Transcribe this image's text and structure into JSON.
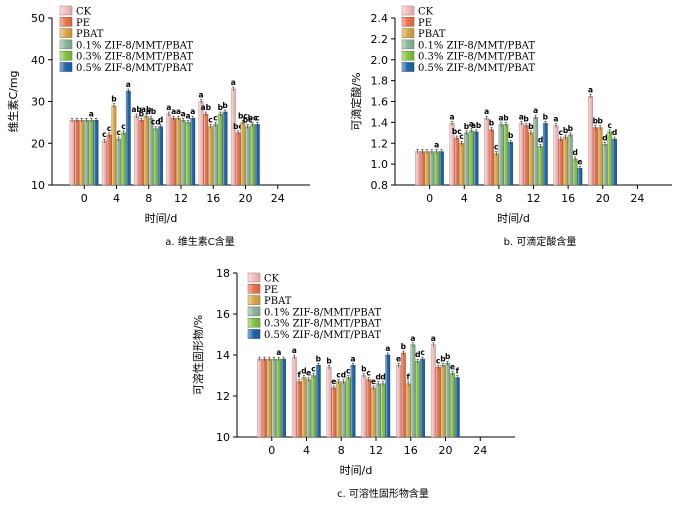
{
  "chart_data": [
    {
      "type": "bar",
      "panel_caption": "a.  维生素C含量",
      "ylabel": "维生素C/mg",
      "xlabel": "时间/d",
      "ylim": [
        10,
        50
      ],
      "yticks": [
        10,
        20,
        30,
        40,
        50
      ],
      "xticks": [
        "0",
        "4",
        "8",
        "12",
        "16",
        "20",
        "24"
      ],
      "categories": [
        "0",
        "4",
        "8",
        "12",
        "16",
        "20"
      ],
      "series": [
        {
          "name": "CK",
          "values": [
            25.5,
            20.5,
            26.5,
            27.0,
            30.0,
            33.0
          ],
          "letters": [
            "",
            "c",
            "ab",
            "a",
            "a",
            "a"
          ]
        },
        {
          "name": "PE",
          "values": [
            25.5,
            22.0,
            25.5,
            26.0,
            27.0,
            22.5
          ],
          "letters": [
            "",
            "c",
            "b",
            "a",
            "ab",
            "bc"
          ]
        },
        {
          "name": "PBAT",
          "values": [
            25.5,
            29.0,
            26.5,
            26.0,
            24.0,
            25.0
          ],
          "letters": [
            "",
            "b",
            "ab",
            "a",
            "c",
            "bc"
          ]
        },
        {
          "name": "0.1% ZIF-8/MMT/PBAT",
          "values": [
            25.5,
            21.0,
            26.0,
            25.5,
            24.5,
            24.0
          ],
          "letters": [
            "",
            "c",
            "ab",
            "a",
            "c",
            "bc"
          ]
        },
        {
          "name": "0.3% ZIF-8/MMT/PBAT",
          "values": [
            25.5,
            22.5,
            23.5,
            25.0,
            27.0,
            24.5
          ],
          "letters": [
            "a",
            "c",
            "cd",
            "a",
            "b",
            "bc"
          ]
        },
        {
          "name": "0.5% ZIF-8/MMT/PBAT",
          "values": [
            25.5,
            32.5,
            24.0,
            26.0,
            27.5,
            24.5
          ],
          "letters": [
            "",
            "a",
            "d",
            "a",
            "b",
            "c"
          ]
        }
      ]
    },
    {
      "type": "bar",
      "panel_caption": "b.  可滴定酸含量",
      "ylabel": "可滴定酸/%",
      "xlabel": "时间/d",
      "ylim": [
        0.8,
        2.4
      ],
      "yticks": [
        0.8,
        1.0,
        1.2,
        1.4,
        1.6,
        1.8,
        2.0,
        2.2,
        2.4
      ],
      "xticks": [
        "0",
        "4",
        "8",
        "12",
        "16",
        "20",
        "24"
      ],
      "categories": [
        "0",
        "4",
        "8",
        "12",
        "16",
        "20"
      ],
      "series": [
        {
          "name": "CK",
          "values": [
            1.12,
            1.39,
            1.44,
            1.39,
            1.37,
            1.65
          ],
          "letters": [
            "",
            "a",
            "a",
            "a",
            "a",
            "a"
          ]
        },
        {
          "name": "PE",
          "values": [
            1.12,
            1.25,
            1.33,
            1.37,
            1.24,
            1.35
          ],
          "letters": [
            "",
            "bc",
            "b",
            "b",
            "c",
            "b"
          ]
        },
        {
          "name": "PBAT",
          "values": [
            1.12,
            1.2,
            1.1,
            1.3,
            1.26,
            1.35
          ],
          "letters": [
            "",
            "c",
            "c",
            "b",
            "b",
            "b"
          ]
        },
        {
          "name": "0.1% ZIF-8/MMT/PBAT",
          "values": [
            1.12,
            1.3,
            1.38,
            1.45,
            1.28,
            1.19
          ],
          "letters": [
            "",
            "b",
            "a",
            "a",
            "b",
            "d"
          ]
        },
        {
          "name": "0.3% ZIF-8/MMT/PBAT",
          "values": [
            1.12,
            1.32,
            1.38,
            1.17,
            1.05,
            1.31
          ],
          "letters": [
            "a",
            "a",
            "b",
            "d",
            "d",
            "c"
          ]
        },
        {
          "name": "0.5% ZIF-8/MMT/PBAT",
          "values": [
            1.12,
            1.31,
            1.21,
            1.39,
            0.96,
            1.24
          ],
          "letters": [
            "",
            "ab",
            "b",
            "b",
            "e",
            "d"
          ]
        }
      ]
    },
    {
      "type": "bar",
      "panel_caption": "c.  可溶性固形物含量",
      "ylabel": "可溶性固形物/%",
      "xlabel": "时间/d",
      "ylim": [
        10,
        18
      ],
      "yticks": [
        10,
        12,
        14,
        16,
        18
      ],
      "xticks": [
        "0",
        "4",
        "8",
        "12",
        "16",
        "20",
        "24"
      ],
      "categories": [
        "0",
        "4",
        "8",
        "12",
        "16",
        "20"
      ],
      "series": [
        {
          "name": "CK",
          "values": [
            13.8,
            13.9,
            13.4,
            13.0,
            13.5,
            14.5
          ],
          "letters": [
            "",
            "a",
            "b",
            "b",
            "e",
            "a"
          ]
        },
        {
          "name": "PE",
          "values": [
            13.8,
            12.7,
            12.4,
            12.8,
            14.1,
            13.4
          ],
          "letters": [
            "",
            "f",
            "e",
            "c",
            "b",
            "c"
          ]
        },
        {
          "name": "PBAT",
          "values": [
            13.8,
            12.9,
            12.7,
            12.4,
            12.6,
            13.5
          ],
          "letters": [
            "",
            "d",
            "c",
            "e",
            "f",
            "b"
          ]
        },
        {
          "name": "0.1% ZIF-8/MMT/PBAT",
          "values": [
            13.8,
            12.8,
            12.7,
            12.6,
            14.5,
            13.6
          ],
          "letters": [
            "",
            "e",
            "d",
            "d",
            "a",
            "b"
          ]
        },
        {
          "name": "0.3% ZIF-8/MMT/PBAT",
          "values": [
            13.8,
            13.0,
            12.9,
            12.6,
            13.7,
            13.1
          ],
          "letters": [
            "a",
            "c",
            "c",
            "d",
            "d",
            "e"
          ]
        },
        {
          "name": "0.5% ZIF-8/MMT/PBAT",
          "values": [
            13.8,
            13.5,
            13.5,
            14.0,
            13.8,
            12.9
          ],
          "letters": [
            "",
            "b",
            "a",
            "a",
            "c",
            "f"
          ]
        }
      ]
    }
  ],
  "colors": {
    "CK": "#f5bfbf",
    "PE": "#ee7450",
    "PBAT": "#d9a94a",
    "0.1% ZIF-8/MMT/PBAT": "#8fb69e",
    "0.3% ZIF-8/MMT/PBAT": "#84c447",
    "0.5% ZIF-8/MMT/PBAT": "#2165ad"
  }
}
